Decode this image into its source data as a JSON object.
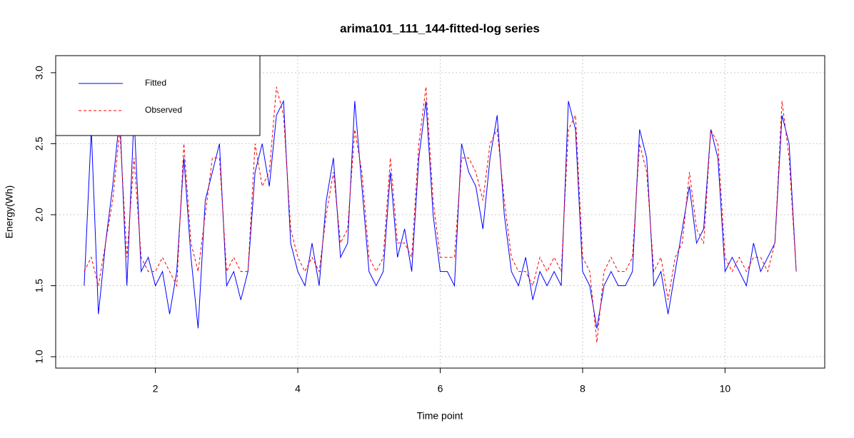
{
  "chart_data": {
    "type": "line",
    "title": "arima101_111_144-fitted-log series",
    "x_label": "Time point",
    "y_label": "Energy(Wh)",
    "x": [
      1.0,
      1.1,
      1.2,
      1.3,
      1.4,
      1.5,
      1.6,
      1.7,
      1.8,
      1.9,
      2.0,
      2.1,
      2.2,
      2.3,
      2.4,
      2.5,
      2.6,
      2.7,
      2.8,
      2.9,
      3.0,
      3.1,
      3.2,
      3.3,
      3.4,
      3.5,
      3.6,
      3.7,
      3.8,
      3.9,
      4.0,
      4.1,
      4.2,
      4.3,
      4.4,
      4.5,
      4.6,
      4.7,
      4.8,
      4.9,
      5.0,
      5.1,
      5.2,
      5.3,
      5.4,
      5.5,
      5.6,
      5.7,
      5.8,
      5.9,
      6.0,
      6.1,
      6.2,
      6.3,
      6.4,
      6.5,
      6.6,
      6.7,
      6.8,
      6.9,
      7.0,
      7.1,
      7.2,
      7.3,
      7.4,
      7.5,
      7.6,
      7.7,
      7.8,
      7.9,
      8.0,
      8.1,
      8.2,
      8.3,
      8.4,
      8.5,
      8.6,
      8.7,
      8.8,
      8.9,
      9.0,
      9.1,
      9.2,
      9.3,
      9.4,
      9.5,
      9.6,
      9.7,
      9.8,
      9.9,
      10.0,
      10.1,
      10.2,
      10.3,
      10.4,
      10.5,
      10.6,
      10.7,
      10.8,
      10.9,
      11.0
    ],
    "series": [
      {
        "name": "Fitted",
        "color": "#0000ff",
        "linestyle": "solid",
        "values": [
          1.5,
          2.6,
          1.3,
          1.8,
          2.2,
          2.7,
          1.5,
          2.7,
          1.6,
          1.7,
          1.5,
          1.6,
          1.3,
          1.6,
          2.4,
          1.7,
          1.2,
          2.1,
          2.3,
          2.5,
          1.5,
          1.6,
          1.4,
          1.6,
          2.3,
          2.5,
          2.2,
          2.7,
          2.8,
          1.8,
          1.6,
          1.5,
          1.8,
          1.5,
          2.1,
          2.4,
          1.7,
          1.8,
          2.8,
          2.2,
          1.6,
          1.5,
          1.6,
          2.3,
          1.7,
          1.9,
          1.6,
          2.4,
          2.8,
          2.0,
          1.6,
          1.6,
          1.5,
          2.5,
          2.3,
          2.2,
          1.9,
          2.4,
          2.7,
          2.0,
          1.6,
          1.5,
          1.7,
          1.4,
          1.6,
          1.5,
          1.6,
          1.5,
          2.8,
          2.6,
          1.6,
          1.5,
          1.2,
          1.5,
          1.6,
          1.5,
          1.5,
          1.6,
          2.6,
          2.4,
          1.5,
          1.6,
          1.3,
          1.6,
          1.9,
          2.2,
          1.8,
          1.9,
          2.6,
          2.4,
          1.6,
          1.7,
          1.6,
          1.5,
          1.8,
          1.6,
          1.7,
          1.8,
          2.7,
          2.5,
          1.6
        ]
      },
      {
        "name": "Observed",
        "color": "#ff0000",
        "linestyle": "dashed",
        "values": [
          1.6,
          1.7,
          1.5,
          1.8,
          2.1,
          2.6,
          1.7,
          2.4,
          1.7,
          1.6,
          1.6,
          1.7,
          1.6,
          1.5,
          2.5,
          1.8,
          1.6,
          2.0,
          2.4,
          2.4,
          1.6,
          1.7,
          1.6,
          1.6,
          2.5,
          2.2,
          2.3,
          2.9,
          2.7,
          1.9,
          1.7,
          1.6,
          1.7,
          1.6,
          2.0,
          2.3,
          1.8,
          1.9,
          2.6,
          2.3,
          1.7,
          1.6,
          1.7,
          2.4,
          1.8,
          1.8,
          1.7,
          2.5,
          2.9,
          2.1,
          1.7,
          1.7,
          1.7,
          2.4,
          2.4,
          2.3,
          2.1,
          2.5,
          2.6,
          2.1,
          1.7,
          1.6,
          1.6,
          1.5,
          1.7,
          1.6,
          1.7,
          1.6,
          2.6,
          2.7,
          1.7,
          1.6,
          1.1,
          1.6,
          1.7,
          1.6,
          1.6,
          1.7,
          2.5,
          2.3,
          1.6,
          1.7,
          1.4,
          1.7,
          1.8,
          2.3,
          1.9,
          1.8,
          2.6,
          2.5,
          1.7,
          1.6,
          1.7,
          1.6,
          1.7,
          1.7,
          1.6,
          1.8,
          2.8,
          2.4,
          1.6
        ]
      }
    ],
    "xlim": [
      0.6,
      11.4
    ],
    "ylim": [
      0.92,
      3.12
    ],
    "xticks": [
      2,
      4,
      6,
      8,
      10
    ],
    "yticks": [
      {
        "value": 1,
        "label": "1.0"
      },
      1.5,
      {
        "value": 2,
        "label": "2.0"
      },
      2.5,
      {
        "value": 3,
        "label": "3.0"
      }
    ],
    "grid": true,
    "legend": "top-left"
  }
}
